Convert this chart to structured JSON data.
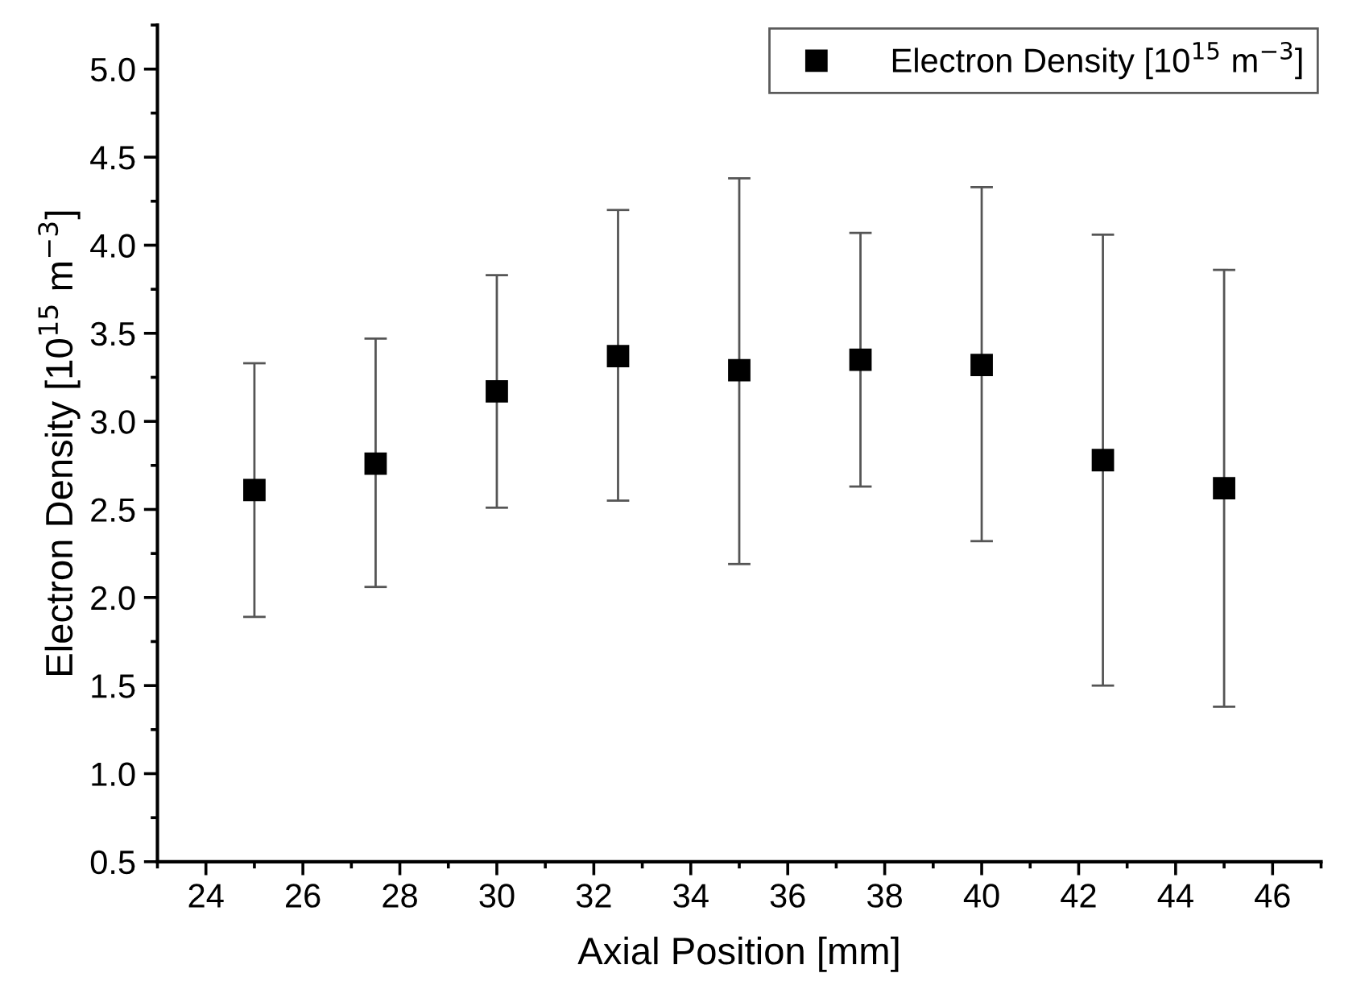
{
  "chart_data": {
    "type": "scatter",
    "xlabel": "Axial Position [mm]",
    "ylabel": "Electron Density [10$^{15}$ m$^{−3}$]",
    "x": [
      25,
      27.5,
      30,
      32.5,
      35,
      37.5,
      40,
      42.5,
      45
    ],
    "series": [
      {
        "name": "Electron Density [10$^{15}$ m$^{−3}$]",
        "color": "#000000",
        "values": [
          2.61,
          2.76,
          3.17,
          3.37,
          3.29,
          3.35,
          3.32,
          2.78,
          2.62
        ],
        "errors": [
          [
            1.89,
            3.33
          ],
          [
            2.06,
            3.47
          ],
          [
            2.51,
            3.83
          ],
          [
            2.55,
            4.2
          ],
          [
            2.19,
            4.38
          ],
          [
            2.63,
            4.07
          ],
          [
            2.32,
            4.33
          ],
          [
            1.5,
            4.06
          ],
          [
            1.38,
            3.86
          ]
        ]
      }
    ],
    "xlim": [
      23,
      47
    ],
    "xticks": [
      24,
      26,
      28,
      30,
      32,
      34,
      36,
      38,
      40,
      42,
      44,
      46
    ],
    "ylim": [
      0.5,
      5.25
    ],
    "yticks": [
      {
        "value": 0.5,
        "label": "0.5"
      },
      {
        "value": 1,
        "label": "1.0"
      },
      {
        "value": 1.5,
        "label": "1.5"
      },
      {
        "value": 2,
        "label": "2.0"
      },
      {
        "value": 2.5,
        "label": "2.5"
      },
      {
        "value": 3,
        "label": "3.0"
      },
      {
        "value": 3.5,
        "label": "3.5"
      },
      {
        "value": 4,
        "label": "4.0"
      },
      {
        "value": 4.5,
        "label": "4.5"
      },
      {
        "value": 5,
        "label": "5.0"
      }
    ],
    "grid": false,
    "legend": "top right",
    "marker": "square"
  }
}
